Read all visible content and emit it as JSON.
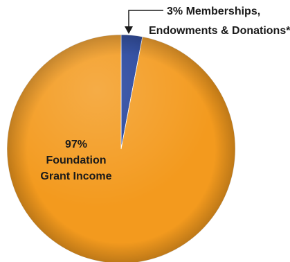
{
  "chart_data": {
    "type": "pie",
    "slices": [
      {
        "value": 3,
        "color": "#1f3f9a",
        "label_lines": [
          "3% Memberships,",
          "Endowments & Donations*"
        ]
      },
      {
        "value": 97,
        "color": "#f39a1e",
        "label_lines": [
          "97%",
          "Foundation",
          "Grant Income"
        ]
      }
    ]
  }
}
